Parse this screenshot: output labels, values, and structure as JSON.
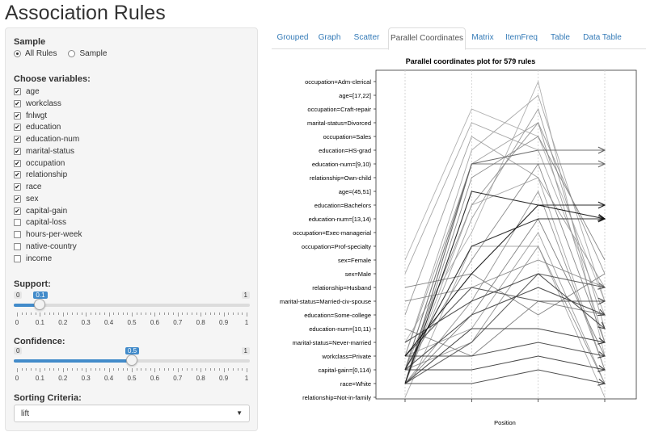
{
  "app": {
    "title": "Association Rules"
  },
  "sidebar": {
    "sample": {
      "label": "Sample",
      "options": [
        {
          "label": "All Rules",
          "selected": true
        },
        {
          "label": "Sample",
          "selected": false
        }
      ]
    },
    "variables": {
      "label": "Choose variables:",
      "items": [
        {
          "label": "age",
          "checked": true
        },
        {
          "label": "workclass",
          "checked": true
        },
        {
          "label": "fnlwgt",
          "checked": true
        },
        {
          "label": "education",
          "checked": true
        },
        {
          "label": "education-num",
          "checked": true
        },
        {
          "label": "marital-status",
          "checked": true
        },
        {
          "label": "occupation",
          "checked": true
        },
        {
          "label": "relationship",
          "checked": true
        },
        {
          "label": "race",
          "checked": true
        },
        {
          "label": "sex",
          "checked": true
        },
        {
          "label": "capital-gain",
          "checked": true
        },
        {
          "label": "capital-loss",
          "checked": false
        },
        {
          "label": "hours-per-week",
          "checked": false
        },
        {
          "label": "native-country",
          "checked": false
        },
        {
          "label": "income",
          "checked": false
        }
      ]
    },
    "support": {
      "label": "Support:",
      "min": "0",
      "max": "1",
      "value": 0.1,
      "value_label": "0.1"
    },
    "confidence": {
      "label": "Confidence:",
      "min": "0",
      "max": "1",
      "value": 0.5,
      "value_label": "0.5"
    },
    "slider_ticks": [
      "0",
      "0.1",
      "0.2",
      "0.3",
      "0.4",
      "0.5",
      "0.6",
      "0.7",
      "0.8",
      "0.9",
      "1"
    ],
    "sorting": {
      "label": "Sorting Criteria:",
      "value": "lift"
    }
  },
  "tabs": [
    {
      "label": "Grouped",
      "active": false
    },
    {
      "label": "Graph",
      "active": false
    },
    {
      "label": "Scatter",
      "active": false
    },
    {
      "label": "Parallel Coordinates",
      "active": true
    },
    {
      "label": "Matrix",
      "active": false
    },
    {
      "label": "ItemFreq",
      "active": false
    },
    {
      "label": "Table",
      "active": false
    },
    {
      "label": "Data Table",
      "active": false
    }
  ],
  "chart_data": {
    "type": "parallel-coordinates",
    "title": "Parallel coordinates plot for 579 rules",
    "xlabel": "Position",
    "axes_count": 4,
    "items": [
      "occupation=Adm-clerical",
      "age=[17,22]",
      "occupation=Craft-repair",
      "marital-status=Divorced",
      "occupation=Sales",
      "education=HS-grad",
      "education-num=[9,10)",
      "relationship=Own-child",
      "age=(45,51]",
      "education=Bachelors",
      "education-num=[13,14)",
      "occupation=Exec-managerial",
      "occupation=Prof-specialty",
      "sex=Female",
      "sex=Male",
      "relationship=Husband",
      "marital-status=Married-civ-spouse",
      "education=Some-college",
      "education-num=[10,11)",
      "marital-status=Never-married",
      "workclass=Private",
      "capital-gain=[0,114)",
      "race=White",
      "relationship=Not-in-family"
    ],
    "rules": [
      {
        "path": [
          22,
          6,
          5,
          5
        ],
        "shade": 0.45,
        "arrow": true
      },
      {
        "path": [
          21,
          6,
          6,
          6
        ],
        "shade": 0.5,
        "arrow": true
      },
      {
        "path": [
          22,
          8,
          9,
          9
        ],
        "shade": 0.1,
        "arrow": true
      },
      {
        "path": [
          21,
          12,
          10,
          10
        ],
        "shade": 0.15,
        "arrow": true
      },
      {
        "path": [
          20,
          14,
          9,
          10
        ],
        "shade": 0.05,
        "arrow": true
      },
      {
        "path": [
          22,
          19,
          14,
          15
        ],
        "shade": 0.4,
        "arrow": true
      },
      {
        "path": [
          20,
          15,
          16,
          16
        ],
        "shade": 0.35,
        "arrow": true
      },
      {
        "path": [
          21,
          17,
          15,
          17
        ],
        "shade": 0.3,
        "arrow": true
      },
      {
        "path": [
          19,
          16,
          14,
          18
        ],
        "shade": 0.3,
        "arrow": true
      },
      {
        "path": [
          22,
          18,
          18,
          19
        ],
        "shade": 0.25,
        "arrow": true
      },
      {
        "path": [
          20,
          20,
          19,
          20
        ],
        "shade": 0.3,
        "arrow": true
      },
      {
        "path": [
          21,
          21,
          20,
          21
        ],
        "shade": 0.25,
        "arrow": true
      },
      {
        "path": [
          22,
          22,
          21,
          22
        ],
        "shade": 0.3,
        "arrow": true
      },
      {
        "path": [
          15,
          14,
          17,
          14
        ],
        "shade": 0.55,
        "arrow": false
      },
      {
        "path": [
          16,
          15,
          13,
          15
        ],
        "shade": 0.6,
        "arrow": false
      },
      {
        "path": [
          18,
          20,
          16,
          17
        ],
        "shade": 0.55,
        "arrow": false
      },
      {
        "path": [
          22,
          7,
          4,
          13
        ],
        "shade": 0.6,
        "arrow": false
      },
      {
        "path": [
          21,
          9,
          3,
          14
        ],
        "shade": 0.65,
        "arrow": false
      },
      {
        "path": [
          20,
          5,
          1,
          16
        ],
        "shade": 0.75,
        "arrow": false
      },
      {
        "path": [
          22,
          10,
          2,
          18
        ],
        "shade": 0.7,
        "arrow": false
      },
      {
        "path": [
          19,
          11,
          0,
          20
        ],
        "shade": 0.8,
        "arrow": false
      },
      {
        "path": [
          21,
          13,
          6,
          19
        ],
        "shade": 0.6,
        "arrow": false
      },
      {
        "path": [
          22,
          16,
          8,
          21
        ],
        "shade": 0.65,
        "arrow": false
      },
      {
        "path": [
          20,
          18,
          11,
          22
        ],
        "shade": 0.7,
        "arrow": false
      },
      {
        "path": [
          23,
          12,
          12,
          23
        ],
        "shade": 0.75,
        "arrow": false
      },
      {
        "path": [
          17,
          4,
          7,
          15
        ],
        "shade": 0.7,
        "arrow": false
      },
      {
        "path": [
          14,
          3,
          5,
          17
        ],
        "shade": 0.75,
        "arrow": false
      },
      {
        "path": [
          22,
          17,
          10,
          20
        ],
        "shade": 0.55,
        "arrow": false
      },
      {
        "path": [
          21,
          19,
          12,
          22
        ],
        "shade": 0.65,
        "arrow": false
      },
      {
        "path": [
          13,
          2,
          4,
          16
        ],
        "shade": 0.8,
        "arrow": false
      },
      {
        "path": [
          20,
          6,
          3,
          19
        ],
        "shade": 0.7,
        "arrow": false
      },
      {
        "path": [
          22,
          9,
          7,
          21
        ],
        "shade": 0.75,
        "arrow": false
      }
    ]
  }
}
